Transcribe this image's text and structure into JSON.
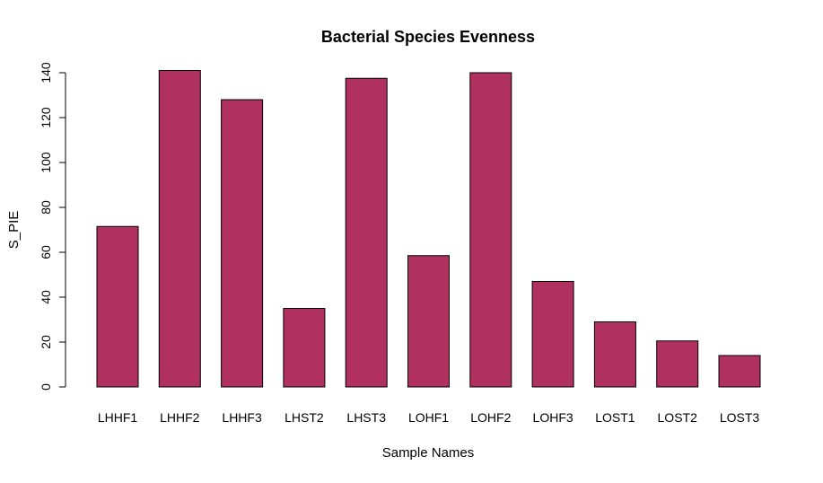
{
  "chart_data": {
    "type": "bar",
    "title": "Bacterial Species Evenness",
    "xlabel": "Sample Names",
    "ylabel": "S_PIE",
    "categories": [
      "LHHF1",
      "LHHF2",
      "LHHF3",
      "LHST2",
      "LHST3",
      "LOHF1",
      "LOHF2",
      "LOHF3",
      "LOST1",
      "LOST2",
      "LOST3"
    ],
    "values": [
      71.5,
      141,
      128,
      35,
      137.5,
      58.5,
      140,
      47,
      29,
      20.5,
      14
    ],
    "ylim": [
      0,
      140
    ],
    "yticks": [
      0,
      20,
      40,
      60,
      80,
      100,
      120,
      140
    ],
    "bar_color": "#B03060",
    "grid": false,
    "legend": "none"
  }
}
